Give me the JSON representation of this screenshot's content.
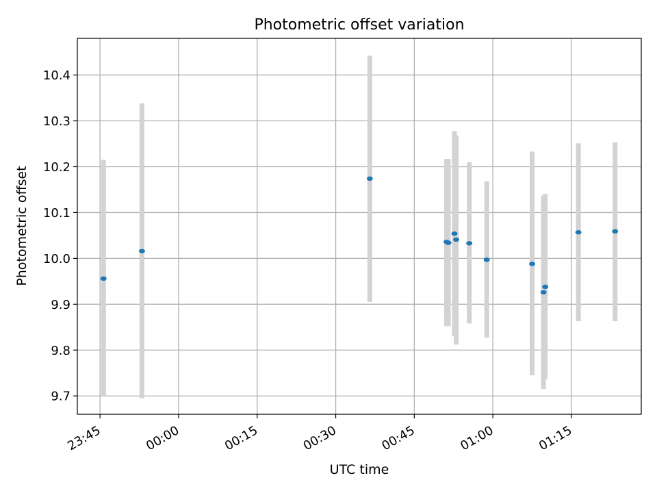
{
  "chart_data": {
    "type": "scatter",
    "title": "Photometric offset variation",
    "xlabel": "UTC time",
    "ylabel": "Photometric offset",
    "x_axis_type": "time",
    "xlim": [
      "23:40:40",
      "01:28:20"
    ],
    "ylim": [
      9.66,
      10.48
    ],
    "xticks": [
      "23:45",
      "00:00",
      "00:15",
      "00:30",
      "00:45",
      "01:00",
      "01:15"
    ],
    "yticks": [
      "9.7",
      "9.8",
      "9.9",
      "10.0",
      "10.1",
      "10.2",
      "10.3",
      "10.4"
    ],
    "grid": true,
    "legend": "none",
    "colors": {
      "point": "#1f77b4",
      "errorbar": "#d3d3d3",
      "grid": "#b0b0b0"
    },
    "points": [
      {
        "time": "23:45:40",
        "y": 9.956,
        "ylow": 9.7,
        "yhigh": 10.215
      },
      {
        "time": "23:53:00",
        "y": 10.016,
        "ylow": 9.695,
        "yhigh": 10.338
      },
      {
        "time": "00:36:30",
        "y": 10.174,
        "ylow": 9.905,
        "yhigh": 10.442
      },
      {
        "time": "00:51:10",
        "y": 10.036,
        "ylow": 9.852,
        "yhigh": 10.217
      },
      {
        "time": "00:51:30",
        "y": 10.034,
        "ylow": 9.852,
        "yhigh": 10.217
      },
      {
        "time": "00:52:40",
        "y": 10.054,
        "ylow": 9.83,
        "yhigh": 10.278
      },
      {
        "time": "00:53:00",
        "y": 10.041,
        "ylow": 9.812,
        "yhigh": 10.268
      },
      {
        "time": "00:55:30",
        "y": 10.033,
        "ylow": 9.858,
        "yhigh": 10.21
      },
      {
        "time": "00:58:50",
        "y": 9.997,
        "ylow": 9.827,
        "yhigh": 10.168
      },
      {
        "time": "01:07:30",
        "y": 9.988,
        "ylow": 9.745,
        "yhigh": 10.233
      },
      {
        "time": "01:09:40",
        "y": 9.926,
        "ylow": 9.715,
        "yhigh": 10.137
      },
      {
        "time": "01:10:00",
        "y": 9.938,
        "ylow": 9.736,
        "yhigh": 10.141
      },
      {
        "time": "01:16:20",
        "y": 10.057,
        "ylow": 9.863,
        "yhigh": 10.251
      },
      {
        "time": "01:23:20",
        "y": 10.059,
        "ylow": 9.863,
        "yhigh": 10.253
      }
    ]
  }
}
